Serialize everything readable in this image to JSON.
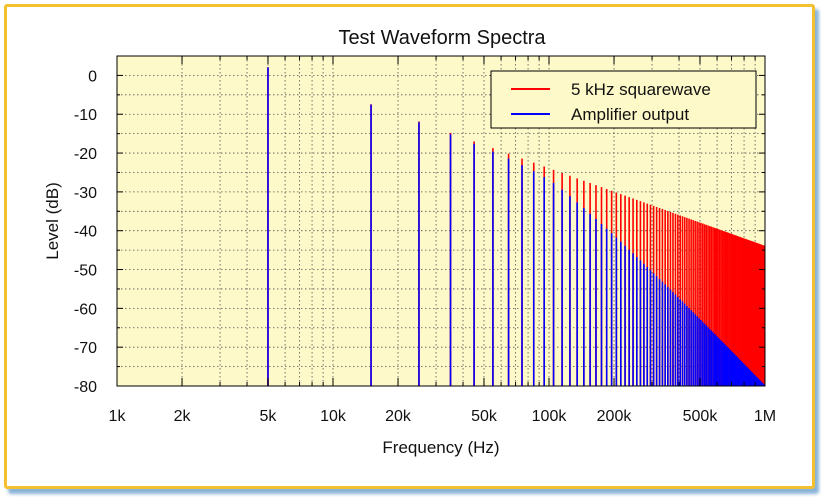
{
  "chart_data": {
    "type": "bar",
    "title": "Test Waveform Spectra",
    "xlabel": "Frequency (Hz)",
    "ylabel": "Level (dB)",
    "x_scale": "log",
    "xlim": [
      1000,
      1000000
    ],
    "ylim": [
      -80,
      5
    ],
    "x_ticks": [
      {
        "value": 1000,
        "label": "1k"
      },
      {
        "value": 2000,
        "label": "2k"
      },
      {
        "value": 5000,
        "label": "5k"
      },
      {
        "value": 10000,
        "label": "10k"
      },
      {
        "value": 20000,
        "label": "20k"
      },
      {
        "value": 50000,
        "label": "50k"
      },
      {
        "value": 100000,
        "label": "100k"
      },
      {
        "value": 200000,
        "label": "200k"
      },
      {
        "value": 500000,
        "label": "500k"
      },
      {
        "value": 1000000,
        "label": "1M"
      }
    ],
    "y_ticks": [
      {
        "value": 0,
        "label": "0"
      },
      {
        "value": -10,
        "label": "-10"
      },
      {
        "value": -20,
        "label": "-20"
      },
      {
        "value": -30,
        "label": "-30"
      },
      {
        "value": -40,
        "label": "-40"
      },
      {
        "value": -50,
        "label": "-50"
      },
      {
        "value": -60,
        "label": "-60"
      },
      {
        "value": -70,
        "label": "-70"
      },
      {
        "value": -80,
        "label": "-80"
      }
    ],
    "grid": true,
    "legend_position": "top-right",
    "background": "#fdf9c8",
    "series": [
      {
        "name": "5 kHz squarewave",
        "color": "#ff0000",
        "description_of_points": "odd harmonics of 5 kHz",
        "fundamental_hz": 5000,
        "fundamental_level_db": 2.1,
        "harmonic_step": "odd multiples",
        "level_rule": "fundamental level minus 20*log10(n)",
        "x_max": 1000000
      },
      {
        "name": "Amplifier output",
        "color": "#0000ff",
        "fundamental_hz": 5000,
        "fundamental_level_db": 2.1,
        "extra_rolloff_db_at_100k": -3,
        "extra_rolloff_db_at_1M": -36,
        "x_max": 1000000
      }
    ]
  }
}
